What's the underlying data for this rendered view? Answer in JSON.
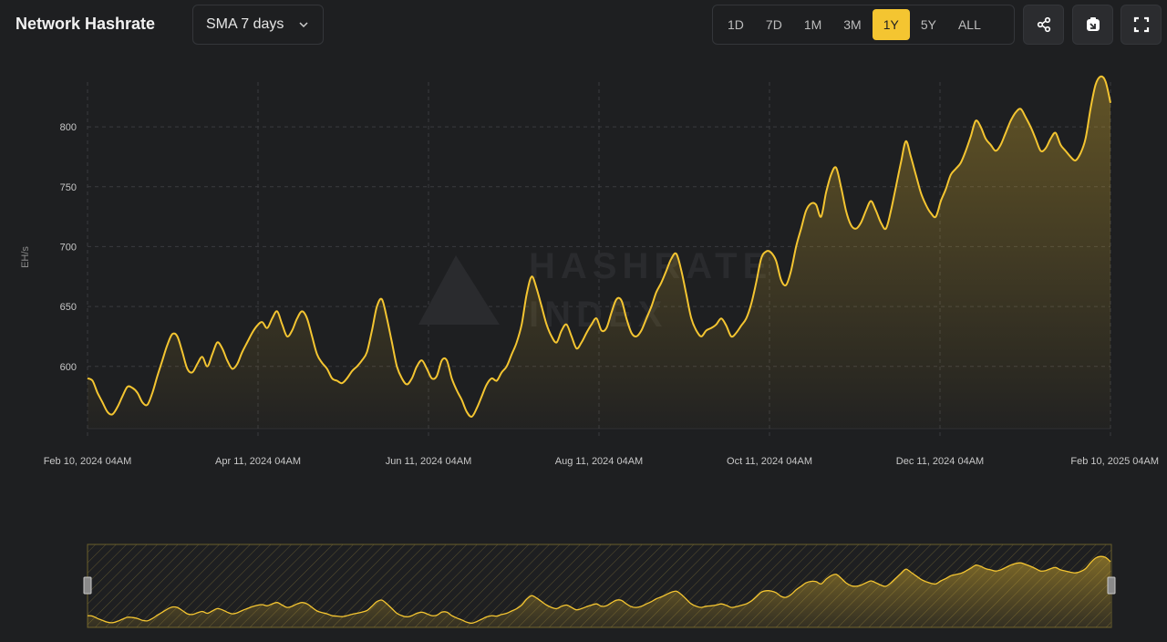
{
  "header": {
    "title": "Network Hashrate",
    "sma_label": "SMA 7 days",
    "ranges": [
      "1D",
      "7D",
      "1M",
      "3M",
      "1Y",
      "5Y",
      "ALL"
    ],
    "active_range": "1Y",
    "actions": {
      "share_icon": "share-icon",
      "image_icon": "download-image-icon",
      "fullscreen_icon": "fullscreen-icon"
    }
  },
  "watermark": {
    "line1": "HASHRATE",
    "line2": "INDEX"
  },
  "colors": {
    "line": "#f4c531",
    "background": "#1e1f21",
    "accent": "#f4c531"
  },
  "chart_data": {
    "type": "area",
    "title": "Network Hashrate",
    "ylabel": "EH/s",
    "xlabel": "",
    "ylim": [
      545,
      845
    ],
    "yticks": [
      600,
      650,
      700,
      750,
      800
    ],
    "xticks": [
      "Feb 10, 2024 04AM",
      "Apr 11, 2024 04AM",
      "Jun 11, 2024 04AM",
      "Aug 11, 2024 04AM",
      "Oct 11, 2024 04AM",
      "Dec 11, 2024 04AM",
      "Feb 10, 2025 04AM"
    ],
    "grid": true,
    "series": [
      {
        "x_start": "2024-02-10",
        "x_end": "2025-02-10",
        "values": [
          590,
          588,
          578,
          570,
          562,
          560,
          566,
          575,
          583,
          582,
          578,
          570,
          568,
          578,
          592,
          605,
          618,
          627,
          625,
          612,
          598,
          595,
          602,
          608,
          600,
          610,
          620,
          615,
          605,
          598,
          602,
          612,
          620,
          628,
          634,
          637,
          632,
          640,
          646,
          635,
          625,
          630,
          640,
          646,
          640,
          625,
          610,
          603,
          598,
          590,
          588,
          586,
          590,
          596,
          600,
          605,
          612,
          630,
          650,
          656,
          640,
          620,
          600,
          590,
          585,
          590,
          600,
          605,
          598,
          590,
          592,
          605,
          605,
          590,
          580,
          572,
          562,
          558,
          565,
          575,
          585,
          590,
          588,
          595,
          600,
          610,
          620,
          635,
          660,
          675,
          665,
          650,
          635,
          625,
          620,
          630,
          635,
          625,
          615,
          620,
          628,
          635,
          640,
          630,
          632,
          645,
          656,
          655,
          640,
          628,
          625,
          630,
          640,
          650,
          662,
          670,
          680,
          690,
          694,
          680,
          660,
          640,
          630,
          625,
          630,
          632,
          635,
          640,
          634,
          625,
          628,
          634,
          640,
          652,
          670,
          690,
          696,
          695,
          688,
          672,
          668,
          680,
          700,
          715,
          730,
          736,
          735,
          725,
          745,
          760,
          766,
          750,
          730,
          718,
          715,
          720,
          730,
          738,
          730,
          720,
          715,
          730,
          750,
          770,
          788,
          775,
          760,
          745,
          735,
          728,
          725,
          738,
          748,
          760,
          765,
          770,
          780,
          792,
          805,
          800,
          790,
          785,
          780,
          785,
          795,
          805,
          812,
          815,
          808,
          800,
          790,
          780,
          782,
          790,
          795,
          785,
          780,
          775,
          772,
          778,
          790,
          815,
          835,
          842,
          838,
          820
        ]
      }
    ]
  },
  "navigator": {
    "series_ref": "chart_data.series.0"
  }
}
